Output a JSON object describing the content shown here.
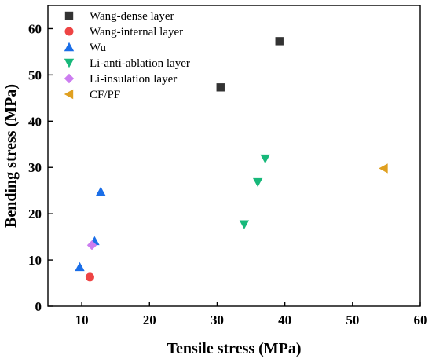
{
  "chart_data": {
    "type": "scatter",
    "xlabel": "Tensile stress (MPa)",
    "ylabel": "Bending stress (MPa)",
    "xlim": [
      5,
      60
    ],
    "ylim": [
      0,
      65
    ],
    "xticks": [
      10,
      20,
      30,
      40,
      50,
      60
    ],
    "yticks": [
      0,
      10,
      20,
      30,
      40,
      50,
      60
    ],
    "grid": false,
    "legend_position": "top-left",
    "series": [
      {
        "name": "Wang-dense layer",
        "marker": "square",
        "color": "#333333",
        "points": [
          {
            "x": 30.5,
            "y": 47.3
          },
          {
            "x": 39.2,
            "y": 57.3
          }
        ]
      },
      {
        "name": "Wang-internal layer",
        "marker": "circle",
        "color": "#ee4444",
        "points": [
          {
            "x": 11.2,
            "y": 6.3
          }
        ]
      },
      {
        "name": "Wu",
        "marker": "triangle-up",
        "color": "#1a6ee8",
        "points": [
          {
            "x": 9.7,
            "y": 8.5
          },
          {
            "x": 11.9,
            "y": 14.1
          },
          {
            "x": 12.8,
            "y": 24.8
          }
        ]
      },
      {
        "name": "Li-anti-ablation layer",
        "marker": "triangle-down",
        "color": "#17b87a",
        "points": [
          {
            "x": 34.0,
            "y": 17.7
          },
          {
            "x": 36.0,
            "y": 26.8
          },
          {
            "x": 37.1,
            "y": 31.9
          }
        ]
      },
      {
        "name": "Li-insulation layer",
        "marker": "diamond",
        "color": "#cc7df0",
        "points": [
          {
            "x": 11.5,
            "y": 13.2
          }
        ]
      },
      {
        "name": "CF/PF",
        "marker": "triangle-left",
        "color": "#e0a020",
        "points": [
          {
            "x": 54.6,
            "y": 29.8
          }
        ]
      }
    ]
  }
}
